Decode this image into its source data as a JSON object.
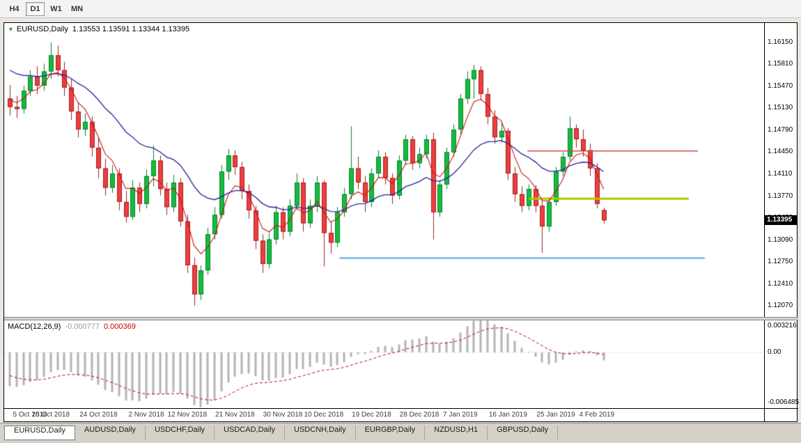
{
  "toolbar": {
    "buttons": [
      {
        "label": "H4",
        "active": false
      },
      {
        "label": "D1",
        "active": true
      },
      {
        "label": "W1",
        "active": false
      },
      {
        "label": "MN",
        "active": false
      }
    ]
  },
  "chart": {
    "marker_icon": "▼",
    "symbol_label": "EURUSD,Daily",
    "ohlc_text": "1.13553 1.13591 1.13344 1.13395",
    "current_price": "1.13395",
    "y_ticks": [
      "1.16150",
      "1.15810",
      "1.15470",
      "1.15130",
      "1.14790",
      "1.14450",
      "1.14110",
      "1.13770",
      "1.13430",
      "1.13090",
      "1.12750",
      "1.12410",
      "1.12070"
    ]
  },
  "macd_panel": {
    "label": "MACD(12,26,9)",
    "value_main": "-0.000777",
    "value_signal": "0.000369",
    "y_ticks": [
      "0.003216",
      "0.00",
      "-0.006485"
    ]
  },
  "tabs": [
    {
      "label": "EURUSD,Daily",
      "active": true
    },
    {
      "label": "AUDUSD,Daily",
      "active": false
    },
    {
      "label": "USDCHF,Daily",
      "active": false
    },
    {
      "label": "USDCAD,Daily",
      "active": false
    },
    {
      "label": "USDCNH,Daily",
      "active": false
    },
    {
      "label": "EURGBP,Daily",
      "active": false
    },
    {
      "label": "NZDUSD,H1",
      "active": false
    },
    {
      "label": "GBPUSD,Daily",
      "active": false
    }
  ],
  "chart_data": {
    "type": "candlestick",
    "symbol": "EURUSD",
    "timeframe": "Daily",
    "price_range": [
      1.119,
      1.1645
    ],
    "macd_range": [
      -0.0068,
      0.0039
    ],
    "x_labels": [
      [
        "5 Oct 2018",
        0
      ],
      [
        "15 Oct 2018",
        6
      ],
      [
        "24 Oct 2018",
        13
      ],
      [
        "2 Nov 2018",
        20
      ],
      [
        "12 Nov 2018",
        26
      ],
      [
        "21 Nov 2018",
        33
      ],
      [
        "30 Nov 2018",
        40
      ],
      [
        "10 Dec 2018",
        46
      ],
      [
        "19 Dec 2018",
        53
      ],
      [
        "28 Dec 2018",
        60
      ],
      [
        "7 Jan 2019",
        66
      ],
      [
        "16 Jan 2019",
        73
      ],
      [
        "25 Jan 2019",
        80
      ],
      [
        "4 Feb 2019",
        86
      ]
    ],
    "candles": [
      [
        1.1528,
        1.1549,
        1.1502,
        1.1515
      ],
      [
        1.1515,
        1.1532,
        1.1498,
        1.1512
      ],
      [
        1.1512,
        1.1548,
        1.1505,
        1.154
      ],
      [
        1.154,
        1.1572,
        1.1532,
        1.1562
      ],
      [
        1.1562,
        1.1578,
        1.1535,
        1.1548
      ],
      [
        1.1548,
        1.1582,
        1.154,
        1.157
      ],
      [
        1.157,
        1.1615,
        1.1558,
        1.1595
      ],
      [
        1.1595,
        1.161,
        1.1562,
        1.1572
      ],
      [
        1.1572,
        1.1585,
        1.1532,
        1.1545
      ],
      [
        1.1545,
        1.1558,
        1.1495,
        1.1508
      ],
      [
        1.1508,
        1.1522,
        1.1468,
        1.148
      ],
      [
        1.148,
        1.1505,
        1.147,
        1.1492
      ],
      [
        1.1492,
        1.15,
        1.1438,
        1.1452
      ],
      [
        1.1452,
        1.1468,
        1.1405,
        1.142
      ],
      [
        1.142,
        1.1435,
        1.1378,
        1.139
      ],
      [
        1.139,
        1.1425,
        1.1382,
        1.1412
      ],
      [
        1.1412,
        1.142,
        1.1355,
        1.1368
      ],
      [
        1.1368,
        1.1385,
        1.1336,
        1.1345
      ],
      [
        1.1345,
        1.1402,
        1.134,
        1.139
      ],
      [
        1.139,
        1.1398,
        1.1352,
        1.1365
      ],
      [
        1.1365,
        1.1418,
        1.1358,
        1.1408
      ],
      [
        1.1408,
        1.1455,
        1.1392,
        1.1432
      ],
      [
        1.1432,
        1.144,
        1.1378,
        1.1388
      ],
      [
        1.1388,
        1.1398,
        1.1348,
        1.136
      ],
      [
        1.136,
        1.141,
        1.1352,
        1.1398
      ],
      [
        1.1398,
        1.1405,
        1.133,
        1.1338
      ],
      [
        1.1338,
        1.1348,
        1.1258,
        1.127
      ],
      [
        1.127,
        1.1282,
        1.1207,
        1.1225
      ],
      [
        1.1225,
        1.127,
        1.1216,
        1.1262
      ],
      [
        1.1262,
        1.1328,
        1.1255,
        1.1318
      ],
      [
        1.1318,
        1.136,
        1.131,
        1.1348
      ],
      [
        1.1348,
        1.1425,
        1.1342,
        1.1415
      ],
      [
        1.1415,
        1.145,
        1.1402,
        1.144
      ],
      [
        1.144,
        1.1448,
        1.141,
        1.1422
      ],
      [
        1.1422,
        1.143,
        1.1372,
        1.1385
      ],
      [
        1.1385,
        1.1395,
        1.1342,
        1.1355
      ],
      [
        1.1355,
        1.1362,
        1.1295,
        1.1308
      ],
      [
        1.1308,
        1.1318,
        1.1258,
        1.1272
      ],
      [
        1.1272,
        1.132,
        1.1265,
        1.131
      ],
      [
        1.131,
        1.1362,
        1.1302,
        1.1352
      ],
      [
        1.1352,
        1.136,
        1.131,
        1.1322
      ],
      [
        1.1322,
        1.1372,
        1.1315,
        1.1362
      ],
      [
        1.1362,
        1.1412,
        1.1355,
        1.1398
      ],
      [
        1.1398,
        1.1405,
        1.1322,
        1.1335
      ],
      [
        1.1335,
        1.1372,
        1.1328,
        1.1362
      ],
      [
        1.1362,
        1.1408,
        1.1352,
        1.1398
      ],
      [
        1.1398,
        1.1402,
        1.1268,
        1.132
      ],
      [
        1.132,
        1.1338,
        1.1288,
        1.1305
      ],
      [
        1.1305,
        1.136,
        1.1298,
        1.1352
      ],
      [
        1.1352,
        1.139,
        1.1345,
        1.138
      ],
      [
        1.138,
        1.1485,
        1.1372,
        1.142
      ],
      [
        1.142,
        1.1438,
        1.1388,
        1.1398
      ],
      [
        1.1398,
        1.1408,
        1.1352,
        1.1368
      ],
      [
        1.1368,
        1.142,
        1.136,
        1.1412
      ],
      [
        1.1412,
        1.1448,
        1.1405,
        1.1438
      ],
      [
        1.1438,
        1.1445,
        1.1395,
        1.1405
      ],
      [
        1.1405,
        1.1412,
        1.1365,
        1.1378
      ],
      [
        1.1378,
        1.144,
        1.1372,
        1.1432
      ],
      [
        1.1432,
        1.1472,
        1.1425,
        1.1465
      ],
      [
        1.1465,
        1.147,
        1.1418,
        1.1428
      ],
      [
        1.1428,
        1.1452,
        1.142,
        1.1442
      ],
      [
        1.1442,
        1.1472,
        1.1435,
        1.1465
      ],
      [
        1.1465,
        1.1475,
        1.131,
        1.1352
      ],
      [
        1.1352,
        1.1402,
        1.1345,
        1.1395
      ],
      [
        1.1395,
        1.1452,
        1.1388,
        1.1445
      ],
      [
        1.1445,
        1.1488,
        1.1438,
        1.148
      ],
      [
        1.148,
        1.1535,
        1.1472,
        1.1528
      ],
      [
        1.1528,
        1.157,
        1.152,
        1.1558
      ],
      [
        1.1558,
        1.158,
        1.1528,
        1.1572
      ],
      [
        1.1572,
        1.1578,
        1.1525,
        1.1535
      ],
      [
        1.1535,
        1.1545,
        1.1488,
        1.15
      ],
      [
        1.15,
        1.151,
        1.1458,
        1.1468
      ],
      [
        1.1468,
        1.149,
        1.146,
        1.1478
      ],
      [
        1.1478,
        1.1482,
        1.1402,
        1.1412
      ],
      [
        1.1412,
        1.1422,
        1.1368,
        1.138
      ],
      [
        1.138,
        1.1392,
        1.1352,
        1.1362
      ],
      [
        1.1362,
        1.1395,
        1.1355,
        1.1388
      ],
      [
        1.1388,
        1.1394,
        1.1352,
        1.1362
      ],
      [
        1.1362,
        1.1372,
        1.1289,
        1.133
      ],
      [
        1.133,
        1.1375,
        1.1322,
        1.1368
      ],
      [
        1.1368,
        1.1422,
        1.1362,
        1.1415
      ],
      [
        1.1415,
        1.1445,
        1.1408,
        1.1438
      ],
      [
        1.1438,
        1.15,
        1.1432,
        1.1482
      ],
      [
        1.1482,
        1.1488,
        1.1452,
        1.1465
      ],
      [
        1.1465,
        1.148,
        1.1438,
        1.1448
      ],
      [
        1.1448,
        1.1458,
        1.1408,
        1.142
      ],
      [
        1.142,
        1.1428,
        1.1358,
        1.1365
      ],
      [
        1.13553,
        1.13591,
        1.13344,
        1.13395
      ]
    ],
    "hlines": [
      {
        "price": 1.1447,
        "color": "#c84a42",
        "width": 1.5,
        "x1": 0.688,
        "x2": 0.912
      },
      {
        "price": 1.1373,
        "color": "#b4c400",
        "width": 3,
        "x1": 0.69,
        "x2": 0.9
      },
      {
        "price": 1.1281,
        "color": "#4fa4e0",
        "width": 2,
        "x1": 0.441,
        "x2": 0.921
      }
    ],
    "colors": {
      "up": "#12bd3e",
      "up_border": "#0a7f2a",
      "down": "#ef3e3e",
      "down_border": "#9d2020",
      "ma_fast": "#cc1111",
      "ma_slow": "#20209a",
      "macd_bar": "#b3b3b3",
      "macd_signal": "#c00000"
    },
    "macd_display": {
      "main": -0.000777,
      "signal": 0.000369
    },
    "legend_position": "top-left",
    "grid": false
  }
}
